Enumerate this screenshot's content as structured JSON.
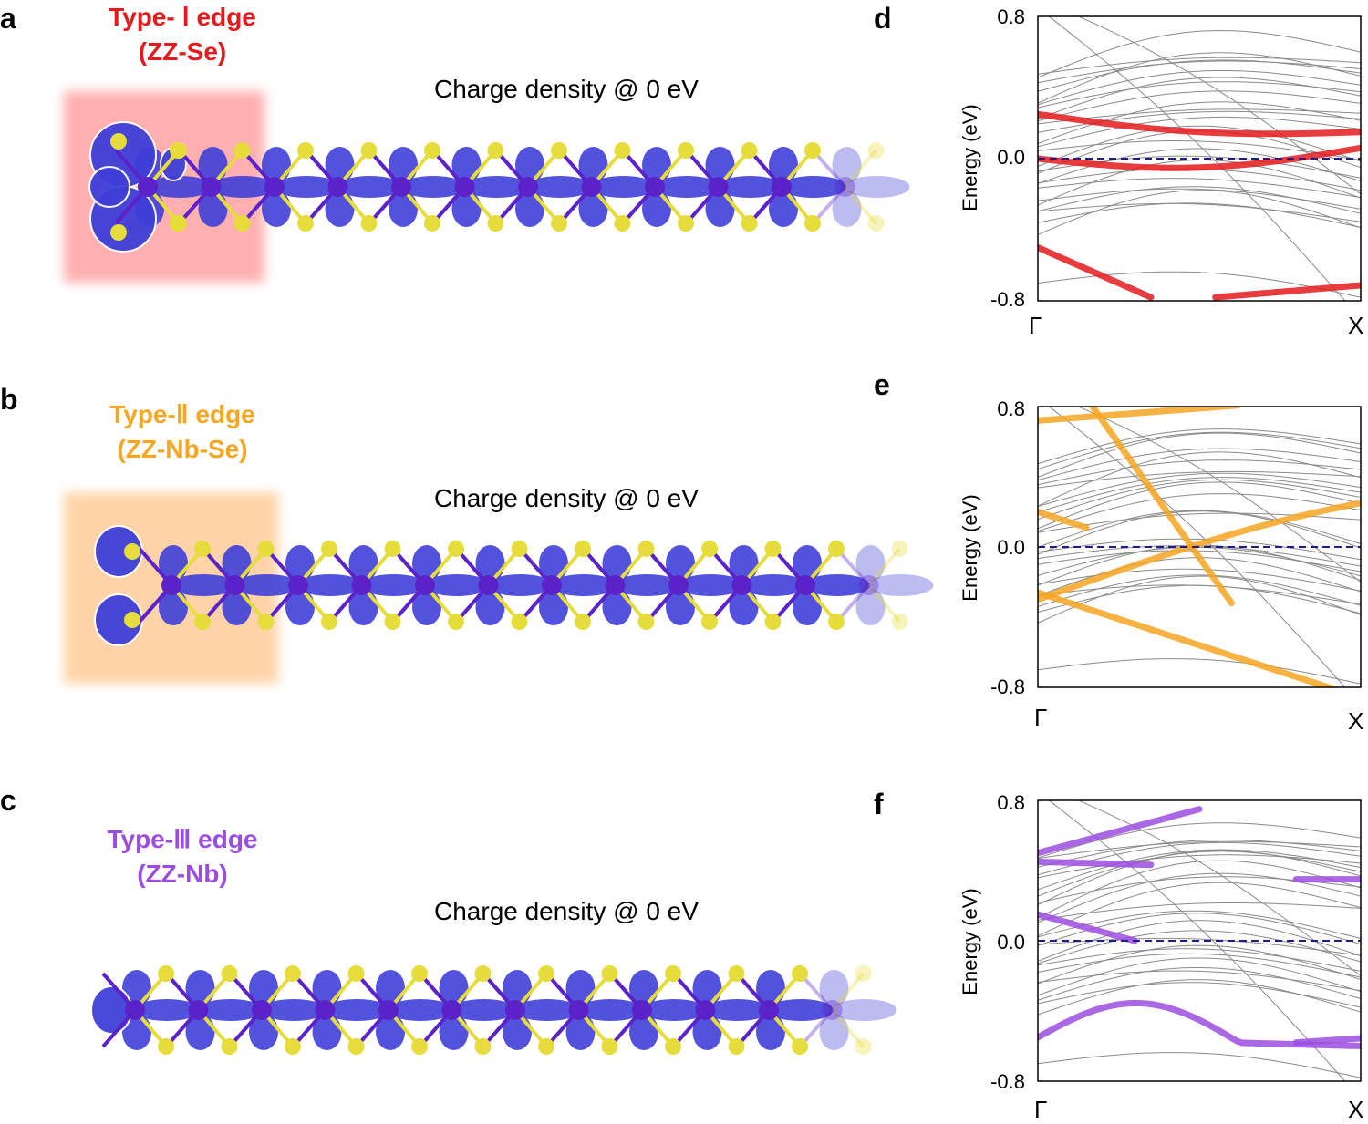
{
  "panels": [
    {
      "label": "a",
      "edge_title": "Type- Ⅰ  edge",
      "edge_sub": "(ZZ-Se)",
      "caption": "Charge density @ 0 eV",
      "color": "#e41a1c"
    },
    {
      "label": "b",
      "edge_title": "Type-Ⅱ edge",
      "edge_sub": "(ZZ-Nb-Se)",
      "caption": "Charge density @ 0 eV",
      "color": "#f5a623"
    },
    {
      "label": "c",
      "edge_title": "Type-Ⅲ edge",
      "edge_sub": "(ZZ-Nb)",
      "caption": "Charge density @ 0 eV",
      "color": "#9b4de0"
    }
  ],
  "band_panels": [
    {
      "label": "d",
      "highlight": "#e41a1c"
    },
    {
      "label": "e",
      "highlight": "#f5a623"
    },
    {
      "label": "f",
      "highlight": "#9b4de0"
    }
  ],
  "axes": {
    "ylabel": "Energy (eV)",
    "yticks": [
      "0.8",
      "0.0",
      "-0.8"
    ],
    "xticks": [
      "Γ",
      "X"
    ]
  },
  "colors": {
    "atom_nb": "#5a22c8",
    "atom_se": "#e6dc3c",
    "density": "#3f3fd8",
    "fermi": "#1a1a9a",
    "band": "#8a8a8a"
  }
}
